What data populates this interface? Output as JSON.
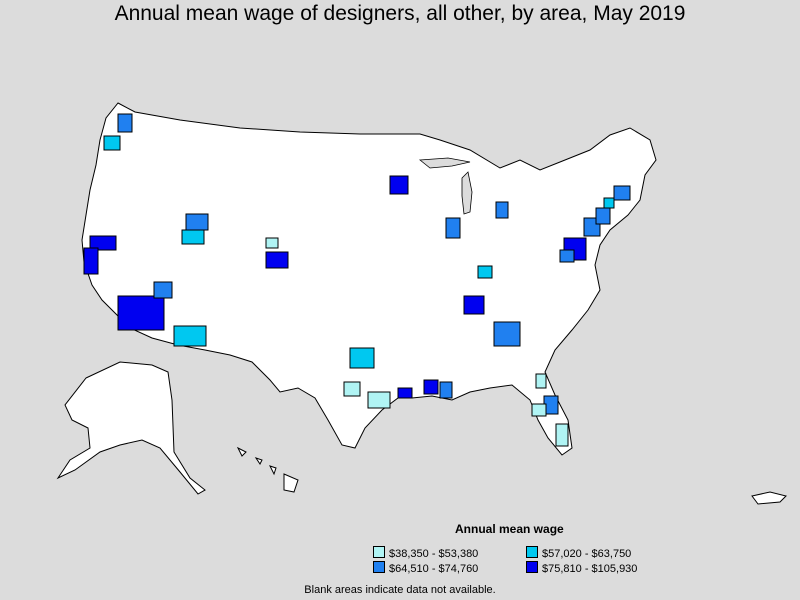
{
  "title": "Annual mean wage of designers, all other, by area, May 2019",
  "legend": {
    "title": "Annual mean wage",
    "items": [
      {
        "label": "$38,350 - $53,380",
        "color": "#b0f4f4"
      },
      {
        "label": "$57,020 - $63,750",
        "color": "#00c8f0"
      },
      {
        "label": "$64,510 - $74,760",
        "color": "#2080f0"
      },
      {
        "label": "$75,810 - $105,930",
        "color": "#0000f0"
      }
    ]
  },
  "note": "Blank areas indicate data not available.",
  "map": {
    "regions": [
      "Contiguous United States",
      "Alaska",
      "Hawaii",
      "Puerto Rico"
    ],
    "fill_blank": "#ffffff",
    "border": "#000000"
  }
}
